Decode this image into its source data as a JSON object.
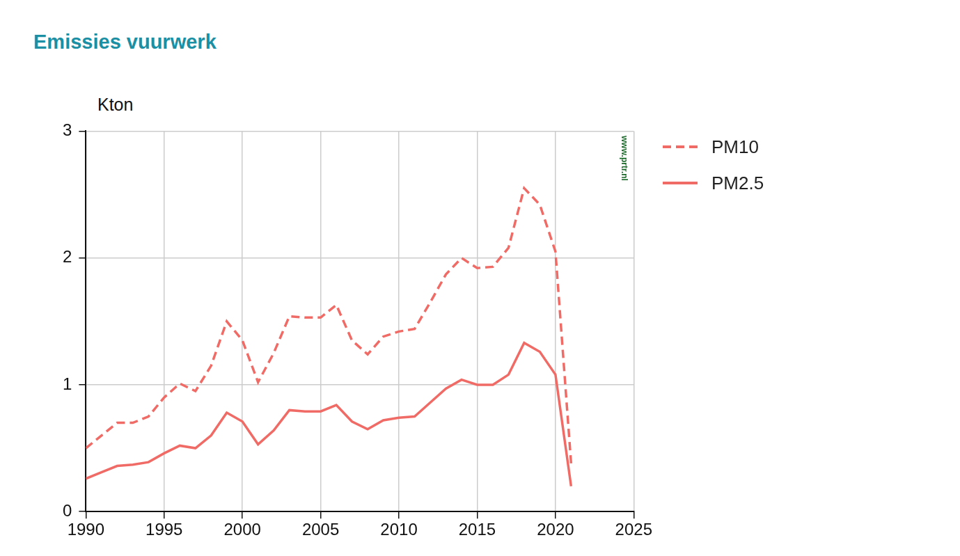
{
  "chart_data": {
    "type": "line",
    "title": "Emissies vuurwerk",
    "y_label": "Kton",
    "annotation": "www.prtr.nl",
    "x": [
      1990,
      1991,
      1992,
      1993,
      1994,
      1995,
      1996,
      1997,
      1998,
      1999,
      2000,
      2001,
      2002,
      2003,
      2004,
      2005,
      2006,
      2007,
      2008,
      2009,
      2010,
      2011,
      2012,
      2013,
      2014,
      2015,
      2016,
      2017,
      2018,
      2019,
      2020,
      2021
    ],
    "series": [
      {
        "name": "PM10",
        "color": "#f06b66",
        "line_style": "dashed",
        "values": [
          0.5,
          0.6,
          0.7,
          0.7,
          0.75,
          0.9,
          1.01,
          0.95,
          1.15,
          1.5,
          1.35,
          1.02,
          1.25,
          1.54,
          1.53,
          1.53,
          1.63,
          1.35,
          1.24,
          1.38,
          1.42,
          1.44,
          1.65,
          1.87,
          2.0,
          1.92,
          1.93,
          2.08,
          2.55,
          2.42,
          2.05,
          0.38
        ]
      },
      {
        "name": "PM2.5",
        "color": "#f06b66",
        "line_style": "solid",
        "values": [
          0.26,
          0.31,
          0.36,
          0.37,
          0.39,
          0.46,
          0.52,
          0.5,
          0.6,
          0.78,
          0.71,
          0.53,
          0.64,
          0.8,
          0.79,
          0.79,
          0.84,
          0.71,
          0.65,
          0.72,
          0.74,
          0.75,
          0.86,
          0.97,
          1.04,
          1.0,
          1.0,
          1.08,
          1.33,
          1.26,
          1.08,
          0.2
        ]
      }
    ],
    "xlim": [
      1990,
      2025
    ],
    "xticks": [
      1990,
      1995,
      2000,
      2005,
      2010,
      2015,
      2020,
      2025
    ],
    "ylim": [
      0,
      3
    ],
    "yticks": [
      0,
      1,
      2,
      3
    ],
    "grid": true,
    "legend": "right"
  }
}
